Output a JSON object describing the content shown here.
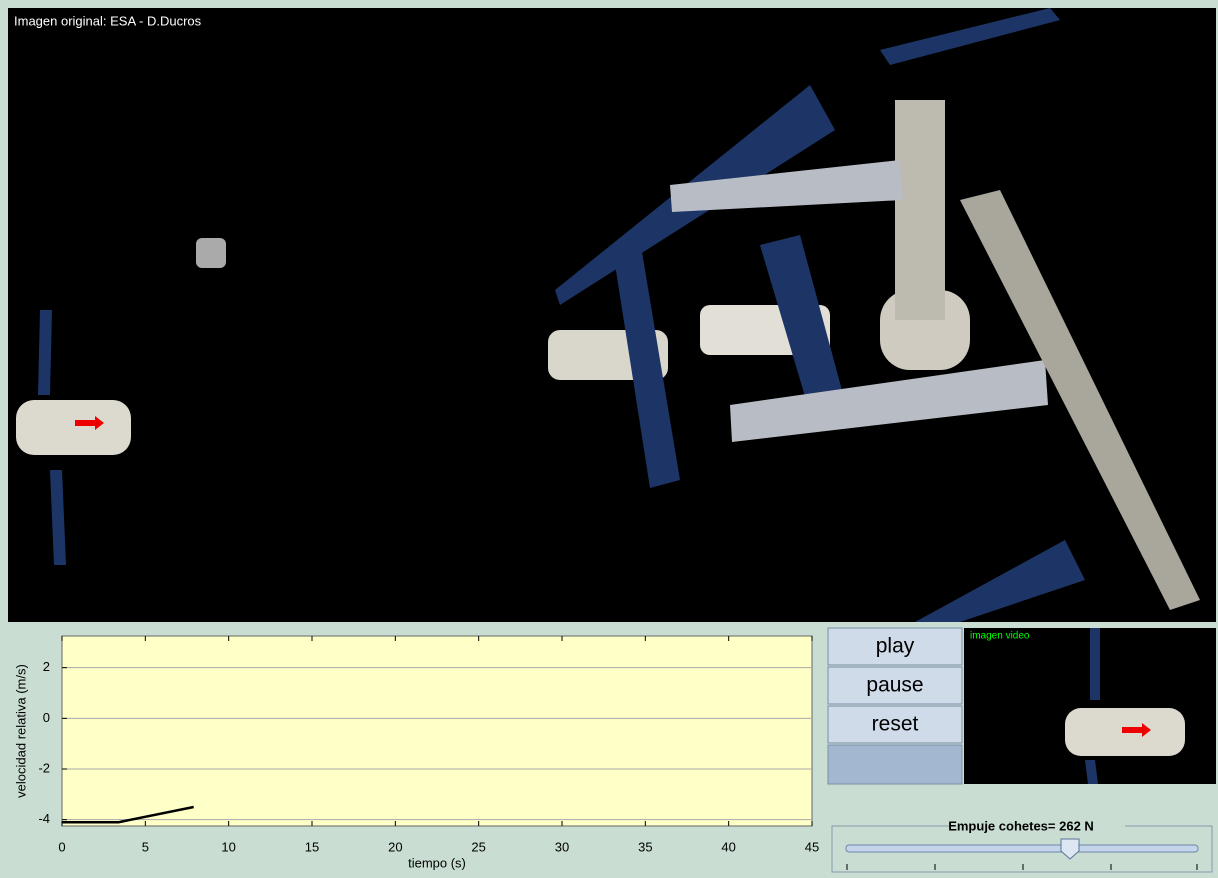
{
  "scene_caption": "Imagen original: ESA - D.Ducros",
  "chart_data": {
    "type": "line",
    "xlabel": "tiempo (s)",
    "ylabel": "velocidad relativa (m/s)",
    "x": [
      0,
      3.4,
      7.9
    ],
    "series": [
      {
        "color": "#000000",
        "values": [
          -4.1,
          -4.1,
          -3.5
        ]
      }
    ],
    "xlim": [
      0,
      45
    ],
    "xticks": [
      0,
      5,
      10,
      15,
      20,
      25,
      30,
      35,
      40,
      45
    ],
    "ylim": [
      -4.25,
      3.25
    ],
    "yticks": [
      -4,
      -2,
      0,
      2
    ],
    "grid": true
  },
  "buttons": [
    "play",
    "pause",
    "reset"
  ],
  "video_label": "imagen video",
  "slider": {
    "label": "Empuje cohetes= 262 N"
  }
}
